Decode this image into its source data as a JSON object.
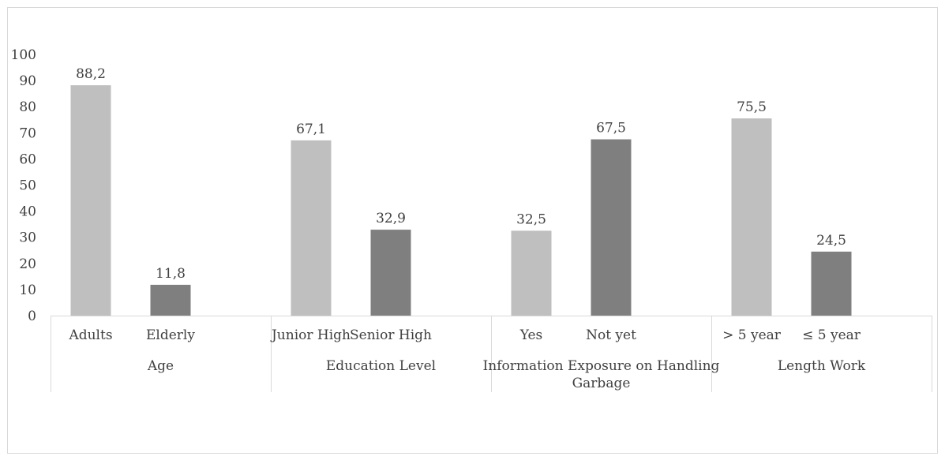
{
  "chart_data": {
    "type": "bar",
    "ylim": [
      0,
      100
    ],
    "yticks": [
      0,
      10,
      20,
      30,
      40,
      50,
      60,
      70,
      80,
      90,
      100
    ],
    "groups": [
      {
        "name": "Age",
        "bars": [
          {
            "label": "Adults",
            "value": 88.2,
            "display": "88,2",
            "color": "#bfbfbf"
          },
          {
            "label": "Elderly",
            "value": 11.8,
            "display": "11,8",
            "color": "#7f7f7f"
          }
        ]
      },
      {
        "name": "Education Level",
        "bars": [
          {
            "label": "Junior High",
            "value": 67.1,
            "display": "67,1",
            "color": "#bfbfbf"
          },
          {
            "label": "Senior High",
            "value": 32.9,
            "display": "32,9",
            "color": "#7f7f7f"
          }
        ]
      },
      {
        "name": "Information Exposure on Handling Garbage",
        "name_lines": [
          "Information Exposure on Handling",
          "Garbage"
        ],
        "bars": [
          {
            "label": "Yes",
            "value": 32.5,
            "display": "32,5",
            "color": "#bfbfbf"
          },
          {
            "label": "Not yet",
            "value": 67.5,
            "display": "67,5",
            "color": "#7f7f7f"
          }
        ]
      },
      {
        "name": "Length Work",
        "bars": [
          {
            "label": "> 5 year",
            "value": 75.5,
            "display": "75,5",
            "color": "#bfbfbf"
          },
          {
            "label": "≤ 5 year",
            "value": 24.5,
            "display": "24,5",
            "color": "#7f7f7f"
          }
        ]
      }
    ]
  }
}
